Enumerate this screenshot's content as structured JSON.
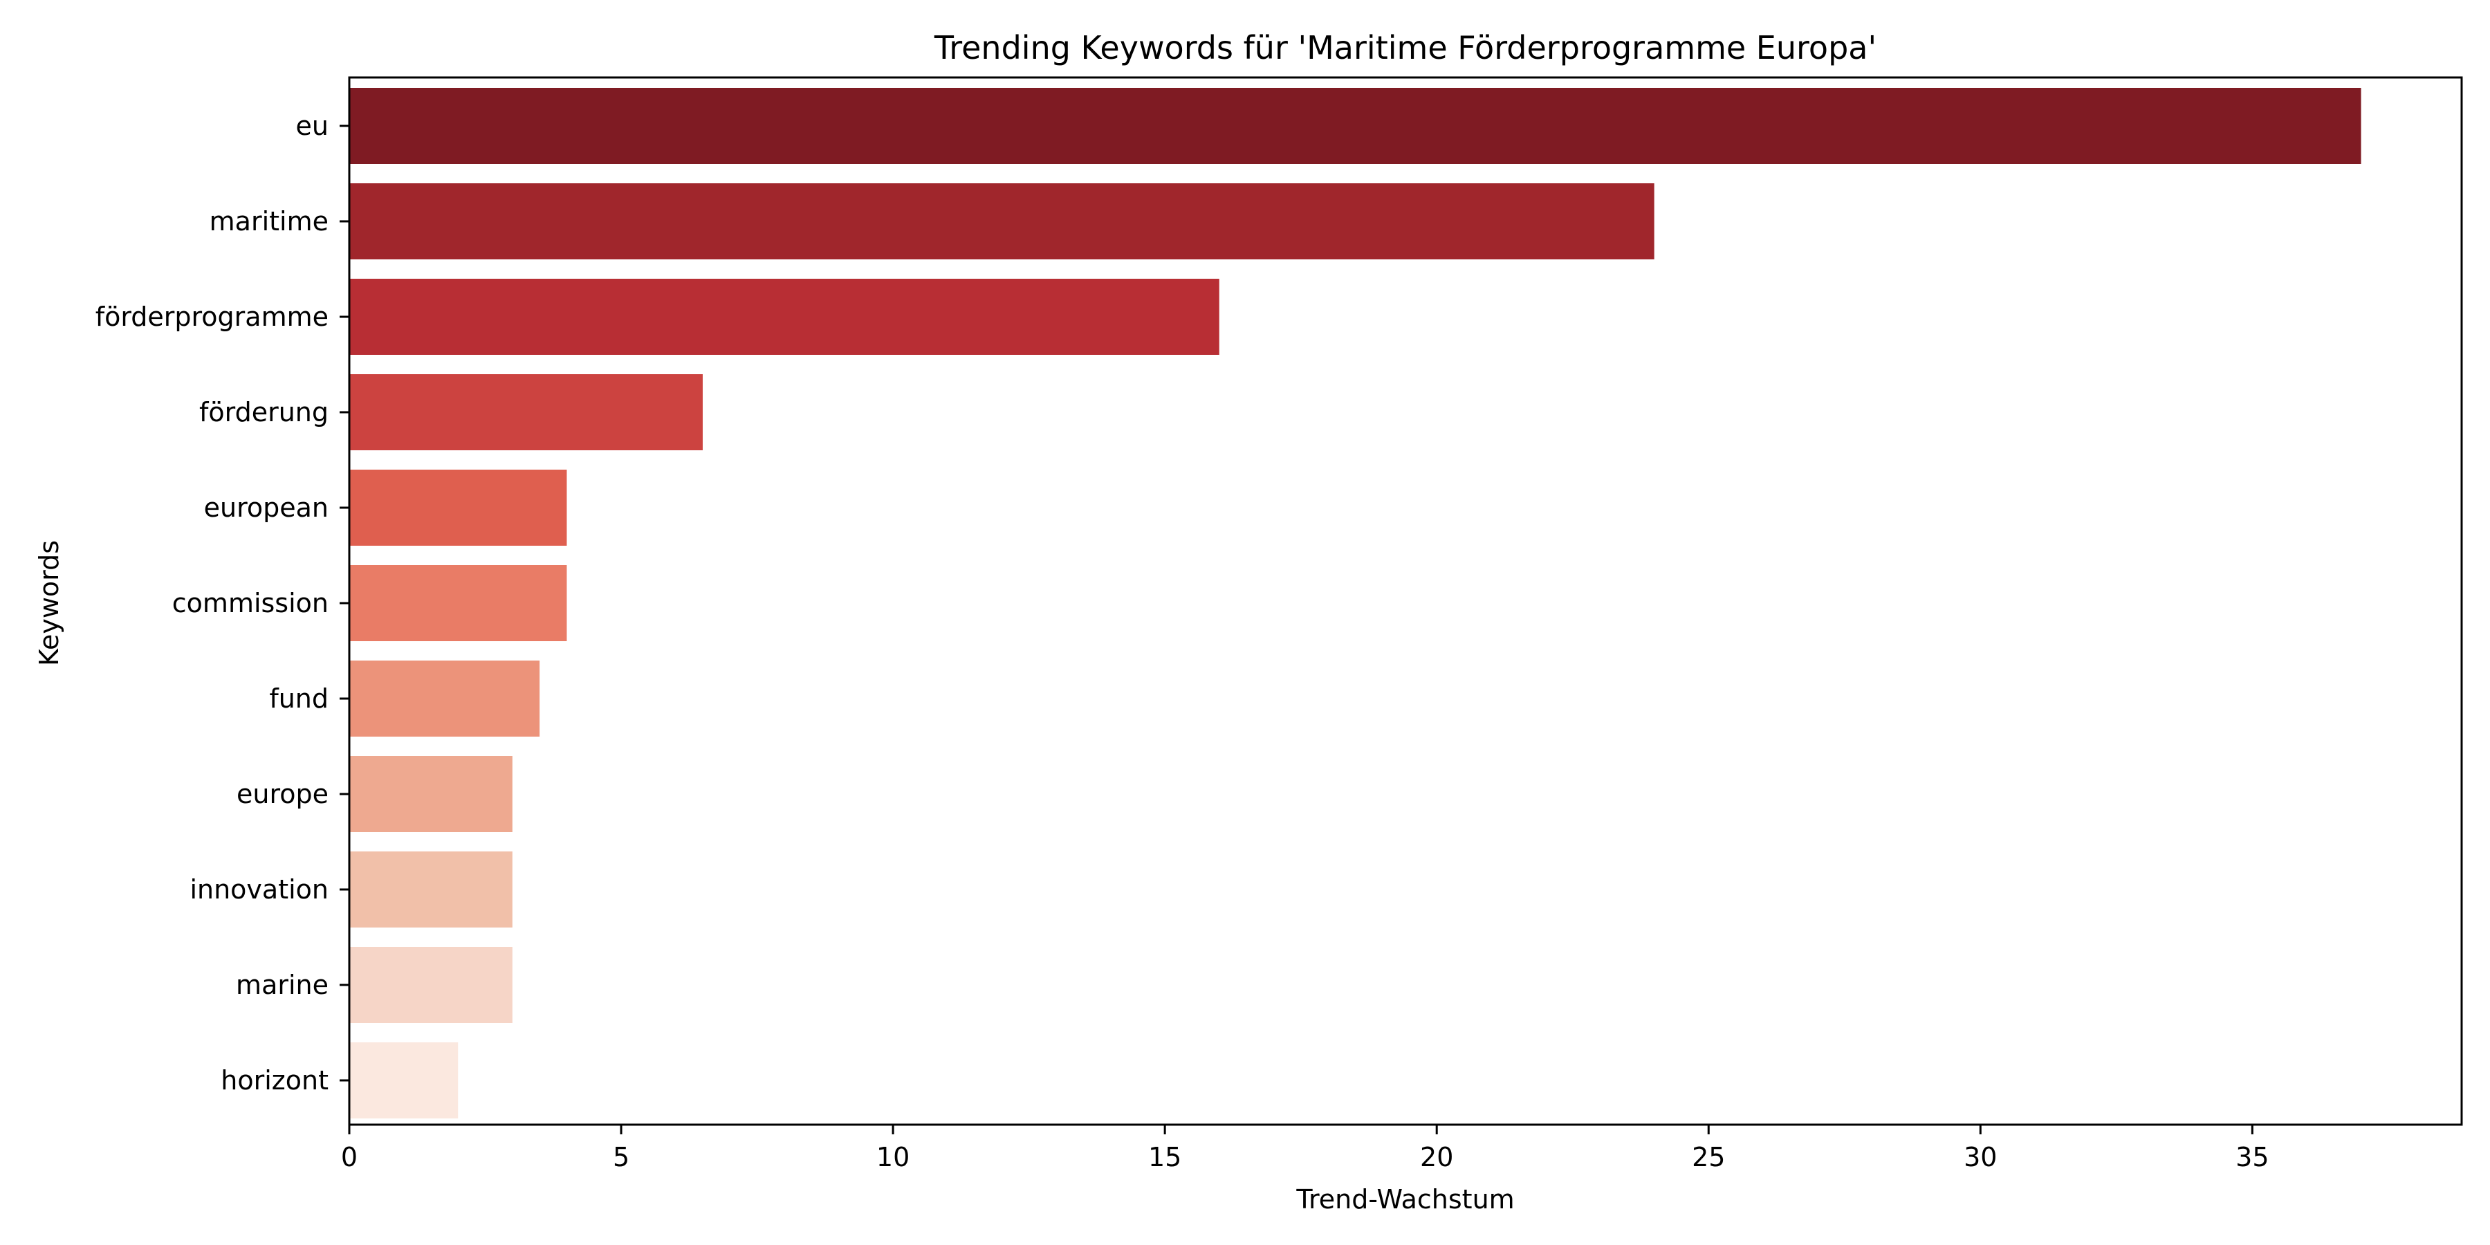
{
  "chart_data": {
    "type": "bar",
    "orientation": "horizontal",
    "title": "Trending Keywords für 'Maritime Förderprogramme Europa'",
    "xlabel": "Trend-Wachstum",
    "ylabel": "Keywords",
    "categories": [
      "eu",
      "maritime",
      "förderprogramme",
      "förderung",
      "european",
      "commission",
      "fund",
      "europe",
      "innovation",
      "marine",
      "horizont"
    ],
    "values": [
      37,
      24,
      16,
      6.5,
      4,
      4,
      3.5,
      3,
      3,
      3,
      2
    ],
    "colors": [
      "#7f1b23",
      "#a0262c",
      "#b82e34",
      "#cc4340",
      "#df5f4f",
      "#e97c66",
      "#ec937a",
      "#eea990",
      "#f1c0a9",
      "#f6d5c7",
      "#fbe8df"
    ],
    "xlim": [
      0,
      38.85
    ],
    "xticks": [
      0,
      5,
      10,
      15,
      20,
      25,
      30,
      35
    ],
    "grid": false,
    "legend": "none"
  }
}
